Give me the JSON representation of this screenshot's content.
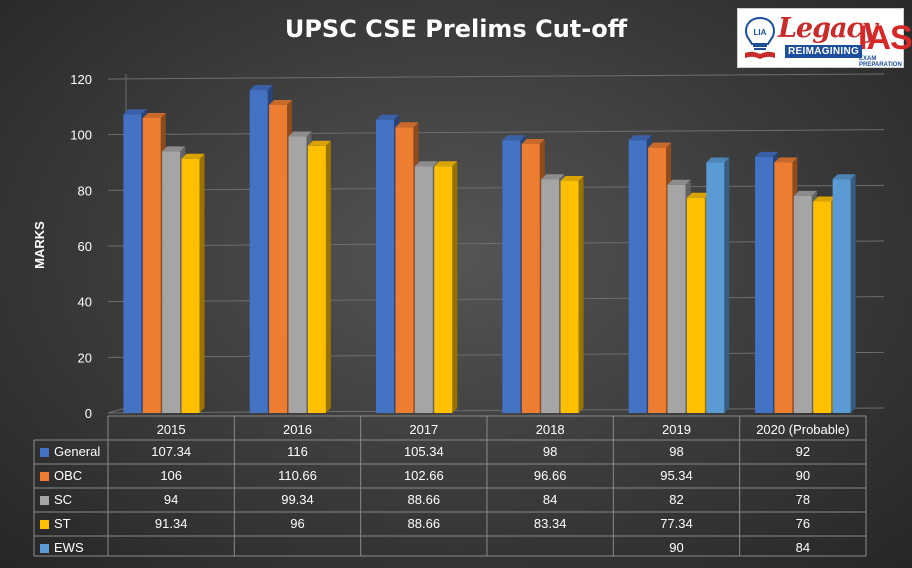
{
  "chart_data": {
    "type": "bar",
    "title": "UPSC CSE Prelims Cut-off",
    "ylabel": "MARKS",
    "ylim": [
      0,
      120
    ],
    "yticks": [
      0,
      20,
      40,
      60,
      80,
      100,
      120
    ],
    "grid": true,
    "categories": [
      "2015",
      "2016",
      "2017",
      "2018",
      "2019",
      "2020 (Probable)"
    ],
    "series": [
      {
        "name": "General",
        "color": "#4472c4",
        "values": [
          107.34,
          116,
          105.34,
          98,
          98,
          92
        ]
      },
      {
        "name": "OBC",
        "color": "#ed7d31",
        "values": [
          106,
          110.66,
          102.66,
          96.66,
          95.34,
          90
        ]
      },
      {
        "name": "SC",
        "color": "#a5a5a5",
        "values": [
          94,
          99.34,
          88.66,
          84,
          82,
          78
        ]
      },
      {
        "name": "ST",
        "color": "#ffc000",
        "values": [
          91.34,
          96,
          88.66,
          83.34,
          77.34,
          76
        ]
      },
      {
        "name": "EWS",
        "color": "#5b9bd5",
        "values": [
          null,
          null,
          null,
          null,
          90,
          84
        ]
      }
    ]
  },
  "logo": {
    "badge": "LIA",
    "name_part1": "Legacy",
    "name_part2": "IAS",
    "tagline": "REIMAGINING",
    "subline": "EXAM PREPARATION"
  }
}
